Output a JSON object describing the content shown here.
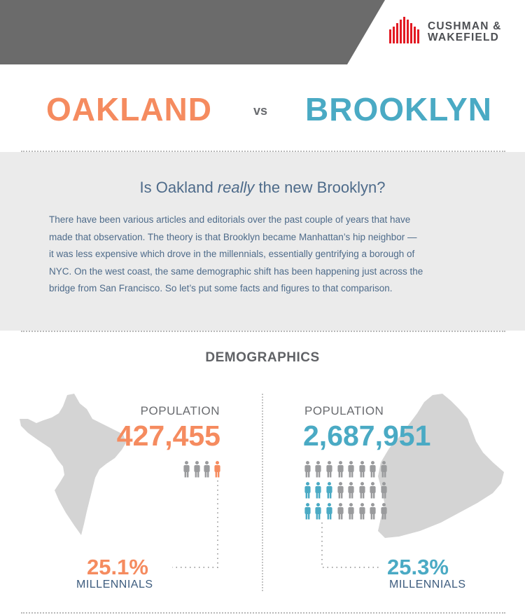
{
  "brand": {
    "line1": "CUSHMAN &",
    "line2": "WAKEFIELD",
    "color": "#e21a23"
  },
  "title": {
    "left_city": "OAKLAND",
    "vs": "vs",
    "right_city": "BROOKLYN",
    "left_color": "#f58b5f",
    "right_color": "#4aaac4"
  },
  "intro": {
    "question_before": "Is Oakland ",
    "question_emphasis": "really",
    "question_after": " the new Brooklyn?",
    "paragraph_lines": [
      "There have been various articles and editorials over the past couple of years that have",
      "made that observation. The theory is that Brooklyn became Manhattan’s hip neighbor —",
      "it was less expensive which drove in the millennials, essentially gentrifying a borough of",
      "NYC. On the west coast, the same demographic shift has been happening just across the",
      "bridge from San Francisco. So let’s put some facts and figures to that comparison."
    ]
  },
  "demographics": {
    "heading": "DEMOGRAPHICS",
    "oakland": {
      "population_label": "POPULATION",
      "population": "427,455",
      "millennial_pct": "25.1%",
      "millennial_label": "MILLENNIALS",
      "people_icons": 4,
      "people_highlighted": 1
    },
    "brooklyn": {
      "population_label": "POPULATION",
      "population": "2,687,951",
      "millennial_pct": "25.3%",
      "millennial_label": "MILLENNIALS",
      "people_icons": 24,
      "people_highlighted": 6
    }
  },
  "colors": {
    "header_gray": "#6b6b6b",
    "panel_gray": "#ebebeb",
    "map_gray": "#d4d4d4",
    "person_gray": "#9a9b9d",
    "text_blue": "#4e6b8a"
  }
}
